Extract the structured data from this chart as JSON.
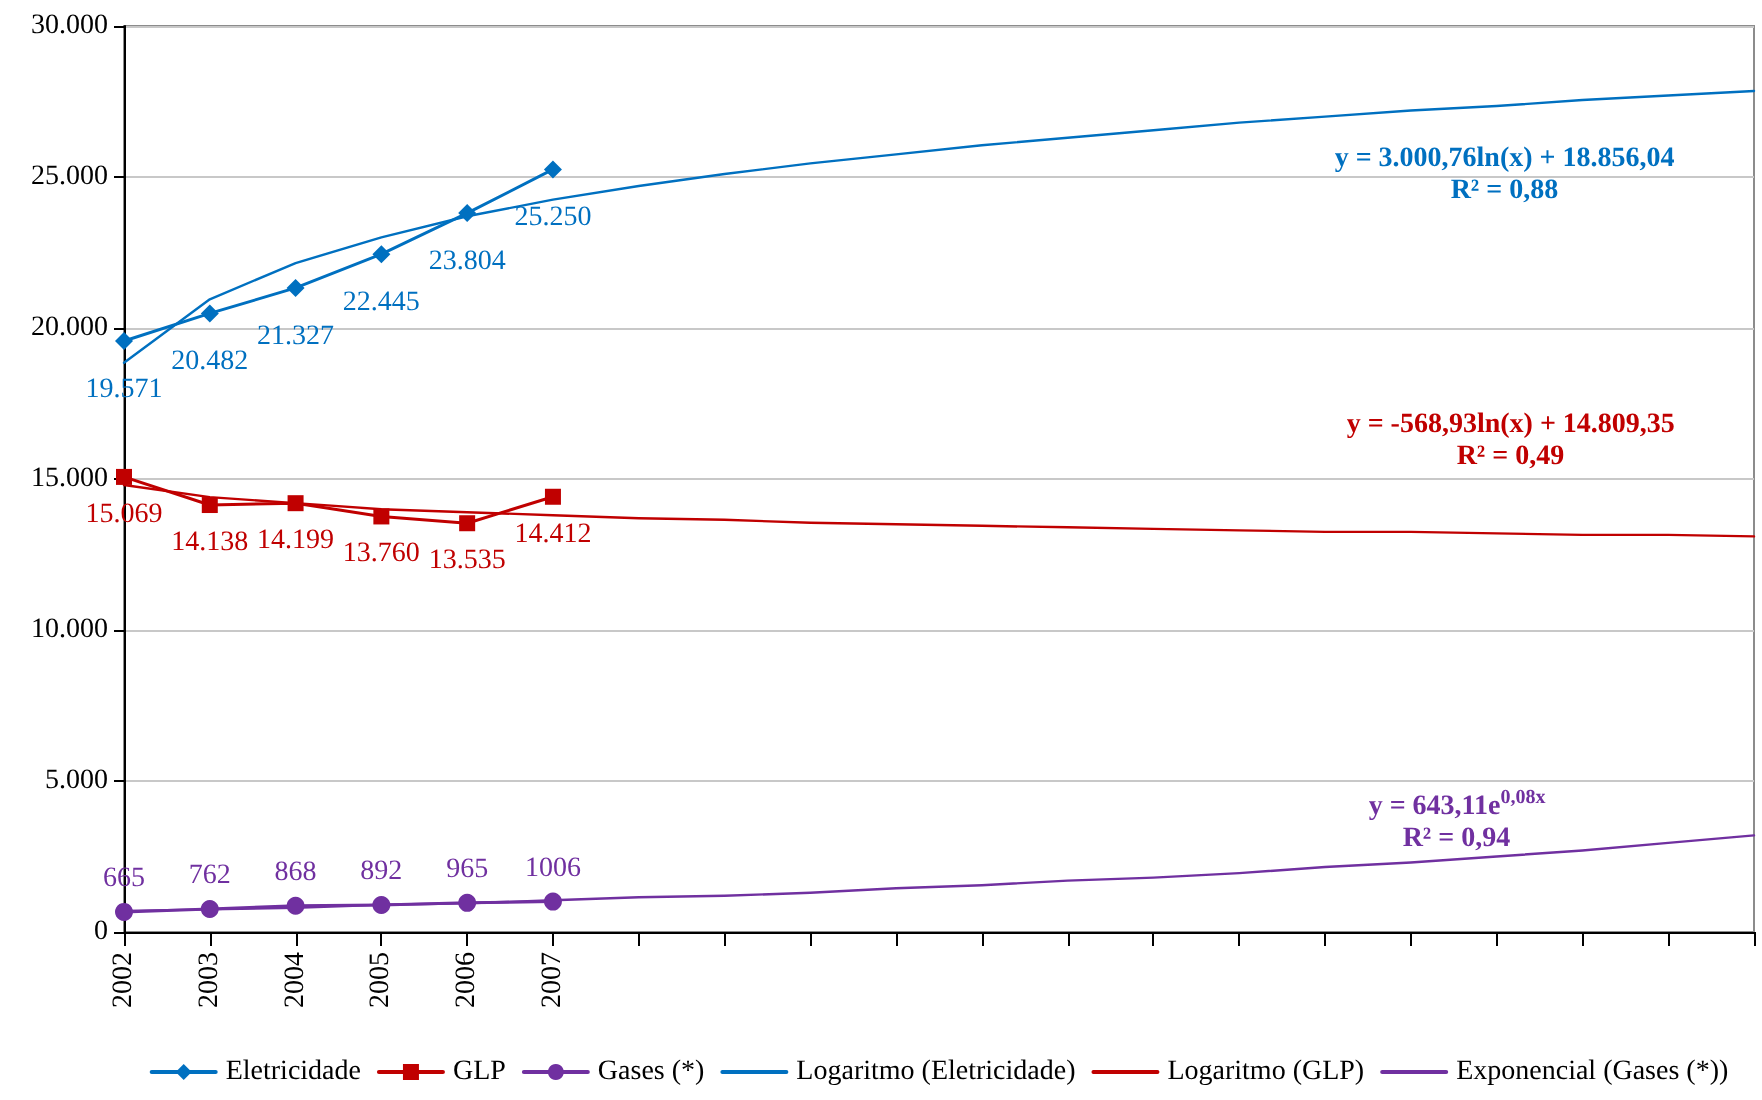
{
  "chart_data": {
    "type": "line",
    "categories": [
      "2002",
      "2003",
      "2004",
      "2005",
      "2006",
      "2007",
      null,
      null,
      null,
      null,
      null,
      null,
      null,
      null,
      null,
      null,
      null,
      null,
      null,
      null
    ],
    "series": [
      {
        "name": "Eletricidade",
        "color": "#0070c0",
        "marker": "diamond",
        "values": [
          19571,
          20482,
          21327,
          22445,
          23804,
          25250,
          null,
          null,
          null,
          null,
          null,
          null,
          null,
          null,
          null,
          null,
          null,
          null,
          null,
          null
        ],
        "value_labels": [
          "19.571",
          "20.482",
          "21.327",
          "22.445",
          "23.804",
          "25.250",
          null,
          null,
          null,
          null,
          null,
          null,
          null,
          null,
          null,
          null,
          null,
          null,
          null,
          null
        ]
      },
      {
        "name": "GLP",
        "color": "#c00000",
        "marker": "square",
        "values": [
          15069,
          14138,
          14199,
          13760,
          13535,
          14412,
          null,
          null,
          null,
          null,
          null,
          null,
          null,
          null,
          null,
          null,
          null,
          null,
          null,
          null
        ],
        "value_labels": [
          "15.069",
          "14.138",
          "14.199",
          "13.760",
          "13.535",
          "14.412",
          null,
          null,
          null,
          null,
          null,
          null,
          null,
          null,
          null,
          null,
          null,
          null,
          null,
          null
        ]
      },
      {
        "name": "Gases (*)",
        "color": "#7030a0",
        "marker": "circle",
        "values": [
          665,
          762,
          868,
          892,
          965,
          1006,
          null,
          null,
          null,
          null,
          null,
          null,
          null,
          null,
          null,
          null,
          null,
          null,
          null,
          null
        ],
        "value_labels": [
          "665",
          "762",
          "868",
          "892",
          "965",
          "1006",
          null,
          null,
          null,
          null,
          null,
          null,
          null,
          null,
          null,
          null,
          null,
          null,
          null,
          null
        ]
      },
      {
        "name": "Logaritmo (Eletricidade)",
        "color": "#0070c0",
        "marker": "none",
        "values": [
          18850,
          20950,
          22150,
          23000,
          23700,
          24250,
          24700,
          25100,
          25450,
          25750,
          26050,
          26300,
          26550,
          26800,
          27000,
          27200,
          27350,
          27550,
          27700,
          27850
        ]
      },
      {
        "name": "Logaritmo (GLP)",
        "color": "#c00000",
        "marker": "none",
        "values": [
          14800,
          14400,
          14200,
          14000,
          13900,
          13800,
          13700,
          13650,
          13550,
          13500,
          13450,
          13400,
          13350,
          13300,
          13250,
          13250,
          13200,
          13150,
          13150,
          13100
        ]
      },
      {
        "name": "Exponencial (Gases (*))",
        "color": "#7030a0",
        "marker": "none",
        "values": [
          700,
          750,
          800,
          900,
          950,
          1050,
          1150,
          1200,
          1300,
          1450,
          1550,
          1700,
          1800,
          1950,
          2150,
          2300,
          2500,
          2700,
          2950,
          3200
        ]
      }
    ],
    "ylim": [
      0,
      30000
    ],
    "yticks": [
      0,
      {
        "value": 5000,
        "label": "5.000"
      },
      {
        "value": 10000,
        "label": "10.000"
      },
      {
        "value": 15000,
        "label": "15.000"
      },
      {
        "value": 20000,
        "label": "20.000"
      },
      {
        "value": 25000,
        "label": "25.000"
      },
      {
        "value": 30000,
        "label": "30.000"
      }
    ],
    "grid": "y",
    "legend": "bottom",
    "annotations": [
      "y = 3.000,76ln(x) + 18.856,04",
      "R² = 0,88",
      "y = -568,93ln(x) + 14.809,35",
      "R² = 0,49",
      "y = 643,11e$^{0,08x}$",
      "R² = 0,94"
    ]
  }
}
